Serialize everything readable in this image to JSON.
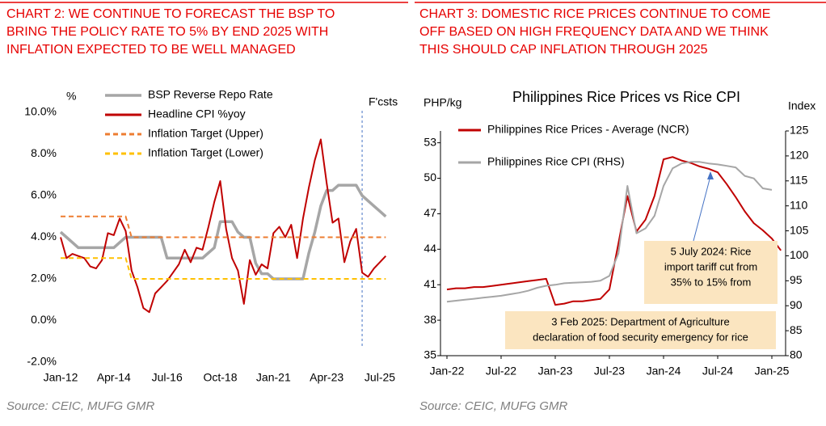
{
  "chart_data": [
    {
      "type": "line",
      "title": [
        "CHART 2: WE CONTINUE TO FORECAST THE BSP TO",
        "BRING THE POLICY RATE TO 5% BY END 2025 WITH",
        "INFLATION EXPECTED TO BE WELL MANAGED"
      ],
      "y_label": "%",
      "categories": [
        "Jan-12",
        "Apr-12",
        "Jul-12",
        "Oct-12",
        "Jan-13",
        "Apr-13",
        "Jul-13",
        "Oct-13",
        "Jan-14",
        "Apr-14",
        "Jul-14",
        "Oct-14",
        "Jan-15",
        "Apr-15",
        "Jul-15",
        "Oct-15",
        "Jan-16",
        "Apr-16",
        "Jul-16",
        "Oct-16",
        "Jan-17",
        "Apr-17",
        "Jul-17",
        "Oct-17",
        "Jan-18",
        "Apr-18",
        "Jul-18",
        "Oct-18",
        "Jan-19",
        "Apr-19",
        "Jul-19",
        "Oct-19",
        "Jan-20",
        "Apr-20",
        "Jul-20",
        "Oct-20",
        "Jan-21",
        "Apr-21",
        "Jul-21",
        "Oct-21",
        "Jan-22",
        "Apr-22",
        "Jul-22",
        "Oct-22",
        "Jan-23",
        "Apr-23",
        "Jul-23",
        "Oct-23",
        "Jan-24",
        "Apr-24",
        "Jul-24",
        "Oct-24",
        "Jan-25",
        "Apr-25",
        "Jul-25",
        "Oct-25"
      ],
      "xticks": [
        "Jan-12",
        "Apr-14",
        "Jul-16",
        "Oct-18",
        "Jan-21",
        "Apr-23",
        "Jul-25"
      ],
      "series": [
        {
          "name": "BSP Reverse Repo Rate",
          "color": "#a6a6a6",
          "width": 3.5,
          "dash": false,
          "values": [
            4.25,
            4.0,
            3.75,
            3.5,
            3.5,
            3.5,
            3.5,
            3.5,
            3.5,
            3.5,
            3.75,
            4.0,
            4.0,
            4.0,
            4.0,
            4.0,
            4.0,
            4.0,
            3.0,
            3.0,
            3.0,
            3.0,
            3.0,
            3.0,
            3.0,
            3.25,
            3.5,
            4.75,
            4.75,
            4.75,
            4.25,
            4.0,
            4.0,
            2.75,
            2.25,
            2.25,
            2.0,
            2.0,
            2.0,
            2.0,
            2.0,
            2.0,
            3.25,
            4.25,
            5.5,
            6.25,
            6.25,
            6.5,
            6.5,
            6.5,
            6.5,
            6.0,
            5.75,
            5.5,
            5.25,
            5.0
          ]
        },
        {
          "name": "Headline CPI %yoy",
          "color": "#c00000",
          "width": 2,
          "dash": false,
          "values": [
            4.0,
            3.0,
            3.2,
            3.1,
            3.0,
            2.6,
            2.5,
            2.9,
            4.2,
            4.1,
            4.9,
            4.3,
            2.4,
            1.6,
            0.6,
            0.4,
            1.3,
            1.6,
            1.9,
            2.3,
            2.7,
            3.4,
            2.8,
            3.5,
            3.4,
            4.5,
            5.7,
            6.7,
            4.4,
            3.0,
            2.4,
            0.8,
            2.9,
            2.2,
            2.7,
            2.5,
            4.2,
            4.5,
            4.0,
            4.6,
            3.0,
            4.9,
            6.4,
            7.7,
            8.7,
            6.6,
            4.7,
            4.9,
            2.8,
            3.8,
            4.4,
            2.3,
            2.1,
            2.5,
            2.8,
            3.1
          ]
        },
        {
          "name": "Inflation Target (Upper)",
          "color": "#ed7d31",
          "width": 2,
          "dash": true,
          "values": [
            5,
            5,
            5,
            5,
            5,
            5,
            5,
            5,
            5,
            5,
            5,
            5,
            4,
            4,
            4,
            4,
            4,
            4,
            4,
            4,
            4,
            4,
            4,
            4,
            4,
            4,
            4,
            4,
            4,
            4,
            4,
            4,
            4,
            4,
            4,
            4,
            4,
            4,
            4,
            4,
            4,
            4,
            4,
            4,
            4,
            4,
            4,
            4,
            4,
            4,
            4,
            4,
            4,
            4,
            4,
            4
          ]
        },
        {
          "name": "Inflation Target (Lower)",
          "color": "#ffc000",
          "width": 2,
          "dash": true,
          "values": [
            3,
            3,
            3,
            3,
            3,
            3,
            3,
            3,
            3,
            3,
            3,
            3,
            2,
            2,
            2,
            2,
            2,
            2,
            2,
            2,
            2,
            2,
            2,
            2,
            2,
            2,
            2,
            2,
            2,
            2,
            2,
            2,
            2,
            2,
            2,
            2,
            2,
            2,
            2,
            2,
            2,
            2,
            2,
            2,
            2,
            2,
            2,
            2,
            2,
            2,
            2,
            2,
            2,
            2,
            2,
            2
          ]
        }
      ],
      "ylim": [
        -2,
        10
      ],
      "yticks": [
        {
          "value": -2,
          "label": "-2.0%"
        },
        {
          "value": 0,
          "label": "0.0%"
        },
        {
          "value": 2,
          "label": "2.0%"
        },
        {
          "value": 4,
          "label": "4.0%"
        },
        {
          "value": 6,
          "label": "6.0%"
        },
        {
          "value": 8,
          "label": "8.0%"
        },
        {
          "value": 10,
          "label": "10.0%"
        }
      ],
      "annotations": [
        {
          "text": "F'csts",
          "x": "Oct-24"
        }
      ],
      "legend": "upper center",
      "source": "Source: CEIC, MUFG GMR"
    },
    {
      "type": "line",
      "title": [
        "CHART 3: DOMESTIC RICE PRICES CONTINUE TO COME",
        "OFF BASED ON HIGH FREQUENCY DATA AND WE THINK",
        "THIS SHOULD CAP INFLATION THROUGH 2025"
      ],
      "subtitle": "Philippines Rice Prices vs Rice CPI",
      "y_label": "PHP/kg",
      "y2_label": "Index",
      "categories": [
        "Jan-22",
        "Feb-22",
        "Mar-22",
        "Apr-22",
        "May-22",
        "Jun-22",
        "Jul-22",
        "Aug-22",
        "Sep-22",
        "Oct-22",
        "Nov-22",
        "Dec-22",
        "Jan-23",
        "Feb-23",
        "Mar-23",
        "Apr-23",
        "May-23",
        "Jun-23",
        "Jul-23",
        "Aug-23",
        "Sep-23",
        "Oct-23",
        "Nov-23",
        "Dec-23",
        "Jan-24",
        "Feb-24",
        "Mar-24",
        "Apr-24",
        "May-24",
        "Jun-24",
        "Jul-24",
        "Aug-24",
        "Sep-24",
        "Oct-24",
        "Nov-24",
        "Dec-24",
        "Jan-25",
        "Feb-25"
      ],
      "xticks": [
        "Jan-22",
        "Jul-22",
        "Jan-23",
        "Jul-23",
        "Jan-24",
        "Jul-24",
        "Jan-25"
      ],
      "series": [
        {
          "name": "Philippines Rice Prices - Average (NCR)",
          "color": "#c00000",
          "width": 2,
          "dash": false,
          "values": [
            40.6,
            40.7,
            40.7,
            40.8,
            40.8,
            40.9,
            41.0,
            41.1,
            41.2,
            41.3,
            41.4,
            41.5,
            39.3,
            39.4,
            39.6,
            39.6,
            39.7,
            39.8,
            40.6,
            44.5,
            48.5,
            45.5,
            46.5,
            48.5,
            51.6,
            51.8,
            51.5,
            51.3,
            51.0,
            50.8,
            50.5,
            49.5,
            48.4,
            47.2,
            46.2,
            45.6,
            44.9,
            43.9
          ]
        },
        {
          "name": "Philippines Rice CPI (RHS)",
          "color": "#a6a6a6",
          "width": 2,
          "dash": false,
          "axis": "y2",
          "values": [
            90.8,
            91.0,
            91.2,
            91.4,
            91.6,
            91.8,
            92.0,
            92.3,
            92.6,
            93.0,
            93.6,
            94.0,
            94.2,
            94.5,
            94.6,
            94.7,
            94.8,
            95.0,
            96.0,
            100.5,
            114.0,
            104.5,
            105.5,
            108.0,
            114.0,
            117.5,
            118.5,
            118.8,
            118.8,
            118.5,
            118.3,
            118.0,
            117.7,
            116.0,
            115.5,
            113.5,
            113.2,
            null
          ]
        }
      ],
      "ylim": [
        35,
        54
      ],
      "yticks": [
        35,
        38,
        41,
        44,
        47,
        50,
        53
      ],
      "y2lim": [
        80,
        125
      ],
      "y2ticks": [
        80,
        85,
        90,
        95,
        100,
        105,
        110,
        115,
        120,
        125
      ],
      "annotations": [
        {
          "lines": [
            "5 July 2024: Rice",
            "import tariff cut from",
            "35% to 15% from"
          ]
        },
        {
          "lines": [
            "3 Feb 2025: Department of Agriculture",
            "declaration of food security emergency for rice"
          ]
        }
      ],
      "legend": "upper left",
      "source": "Source: CEIC, MUFG GMR"
    }
  ]
}
